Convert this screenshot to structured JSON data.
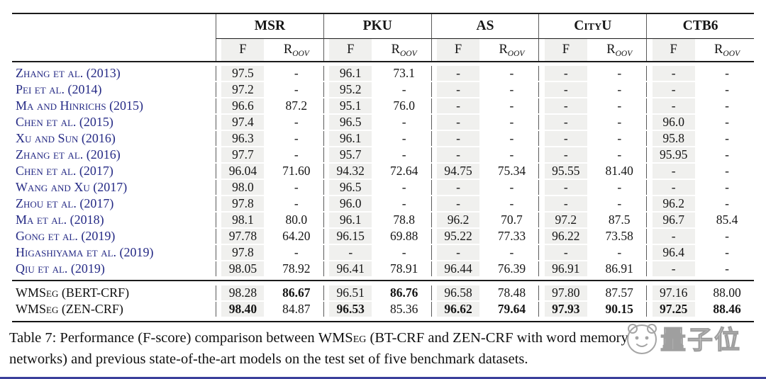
{
  "table": {
    "groups": [
      "MSR",
      "PKU",
      "AS",
      "CityU",
      "CTB6"
    ],
    "subheader": {
      "f": "F",
      "r_main": "R",
      "r_sub": "OOV"
    },
    "citation_rows": [
      {
        "label": "Zhang et al. (2013)",
        "values": [
          "97.5",
          "-",
          "96.1",
          "73.1",
          "-",
          "-",
          "-",
          "-",
          "-",
          "-"
        ]
      },
      {
        "label": "Pei et al. (2014)",
        "values": [
          "97.2",
          "-",
          "95.2",
          "-",
          "-",
          "-",
          "-",
          "-",
          "-",
          "-"
        ]
      },
      {
        "label": "Ma and Hinrichs (2015)",
        "values": [
          "96.6",
          "87.2",
          "95.1",
          "76.0",
          "-",
          "-",
          "-",
          "-",
          "-",
          "-"
        ]
      },
      {
        "label": "Chen et al. (2015)",
        "values": [
          "97.4",
          "-",
          "96.5",
          "-",
          "-",
          "-",
          "-",
          "-",
          "96.0",
          "-"
        ]
      },
      {
        "label": "Xu and Sun (2016)",
        "values": [
          "96.3",
          "-",
          "96.1",
          "-",
          "-",
          "-",
          "-",
          "-",
          "95.8",
          "-"
        ]
      },
      {
        "label": "Zhang et al. (2016)",
        "values": [
          "97.7",
          "-",
          "95.7",
          "-",
          "-",
          "-",
          "-",
          "-",
          "95.95",
          "-"
        ]
      },
      {
        "label": "Chen et al. (2017)",
        "values": [
          "96.04",
          "71.60",
          "94.32",
          "72.64",
          "94.75",
          "75.34",
          "95.55",
          "81.40",
          "-",
          "-"
        ]
      },
      {
        "label": "Wang and Xu (2017)",
        "values": [
          "98.0",
          "-",
          "96.5",
          "-",
          "-",
          "-",
          "-",
          "-",
          "-",
          "-"
        ]
      },
      {
        "label": "Zhou et al. (2017)",
        "values": [
          "97.8",
          "-",
          "96.0",
          "-",
          "-",
          "-",
          "-",
          "-",
          "96.2",
          "-"
        ]
      },
      {
        "label": "Ma et al. (2018)",
        "values": [
          "98.1",
          "80.0",
          "96.1",
          "78.8",
          "96.2",
          "70.7",
          "97.2",
          "87.5",
          "96.7",
          "85.4"
        ]
      },
      {
        "label": "Gong et al. (2019)",
        "values": [
          "97.78",
          "64.20",
          "96.15",
          "69.88",
          "95.22",
          "77.33",
          "96.22",
          "73.58",
          "-",
          "-"
        ]
      },
      {
        "label": "Higashiyama et al. (2019)",
        "values": [
          "97.8",
          "-",
          "-",
          "-",
          "-",
          "-",
          "-",
          "-",
          "96.4",
          "-"
        ]
      },
      {
        "label": "Qiu et al. (2019)",
        "values": [
          "98.05",
          "78.92",
          "96.41",
          "78.91",
          "96.44",
          "76.39",
          "96.91",
          "86.91",
          "-",
          "-"
        ]
      }
    ],
    "model_rows": [
      {
        "label": "WMSeg (BERT-CRF)",
        "values": [
          "98.28",
          "86.67",
          "96.51",
          "86.76",
          "96.58",
          "78.48",
          "97.80",
          "87.57",
          "97.16",
          "88.00"
        ],
        "bold": [
          false,
          true,
          false,
          true,
          false,
          false,
          false,
          false,
          false,
          false
        ]
      },
      {
        "label": "WMSeg (ZEN-CRF)",
        "values": [
          "98.40",
          "84.87",
          "96.53",
          "85.36",
          "96.62",
          "79.64",
          "97.93",
          "90.15",
          "97.25",
          "88.46"
        ],
        "bold": [
          true,
          false,
          true,
          false,
          true,
          true,
          true,
          true,
          true,
          true
        ]
      }
    ]
  },
  "caption": {
    "line1_pre": "Table 7: Performance (F-score) comparison between ",
    "line1_sc": "WMSeg",
    "line1_post": " (BT-CRF and ZEN-CRF with word memory",
    "line2": "networks) and previous state-of-the-art models on the test set of five benchmark datasets."
  },
  "watermark": {
    "text": "量子位"
  },
  "colors": {
    "citation_link": "#252a85",
    "column_stripe": "#f0f0ee",
    "table_rule": "#1b1b1b",
    "bottom_accent_line": "#3a3f9b",
    "watermark_gray": "#9f9f9f"
  }
}
